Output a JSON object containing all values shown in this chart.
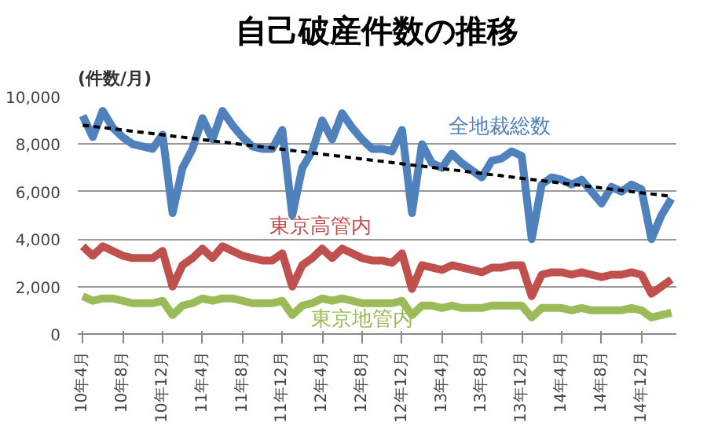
{
  "chart_data": {
    "type": "line",
    "title": "自己破産件数の推移",
    "ylabel": "(件数/月)",
    "categories": [
      "10年4月",
      null,
      null,
      null,
      "10年8月",
      null,
      null,
      null,
      "10年12月",
      null,
      null,
      null,
      "11年4月",
      null,
      null,
      null,
      "11年8月",
      null,
      null,
      null,
      "11年12月",
      null,
      null,
      null,
      "12年4月",
      null,
      null,
      null,
      "12年8月",
      null,
      null,
      null,
      "12年12月",
      null,
      null,
      null,
      "13年4月",
      null,
      null,
      null,
      "13年8月",
      null,
      null,
      null,
      "13年12月",
      null,
      null,
      null,
      "14年4月",
      null,
      null,
      null,
      "14年8月",
      null,
      null,
      null,
      "14年12月",
      null,
      null,
      null
    ],
    "series": [
      {
        "name": "全地裁総数",
        "color": "#4f81bd",
        "values": [
          9200,
          8300,
          9400,
          8700,
          8300,
          8000,
          7900,
          7800,
          8400,
          5100,
          7000,
          7800,
          9100,
          8200,
          9400,
          8800,
          8300,
          7900,
          7800,
          7800,
          8600,
          5000,
          7000,
          7700,
          9000,
          8200,
          9300,
          8700,
          8200,
          7800,
          7800,
          7700,
          8600,
          5100,
          8000,
          7200,
          7000,
          7600,
          7200,
          6900,
          6600,
          7300,
          7400,
          7700,
          7500,
          4000,
          6300,
          6600,
          6500,
          6300,
          6500,
          6000,
          5500,
          6200,
          6000,
          6300,
          6100,
          4000,
          5000,
          5700
        ]
      },
      {
        "name": "東京高管内",
        "color": "#c0504d",
        "values": [
          3700,
          3300,
          3700,
          3500,
          3300,
          3200,
          3200,
          3200,
          3500,
          2000,
          2900,
          3200,
          3600,
          3200,
          3700,
          3500,
          3300,
          3200,
          3100,
          3100,
          3400,
          2000,
          2900,
          3200,
          3600,
          3200,
          3600,
          3400,
          3200,
          3100,
          3100,
          3000,
          3400,
          1900,
          2900,
          2800,
          2700,
          2900,
          2800,
          2700,
          2600,
          2800,
          2800,
          2900,
          2900,
          1600,
          2500,
          2600,
          2600,
          2500,
          2600,
          2500,
          2400,
          2500,
          2500,
          2600,
          2500,
          1700,
          2000,
          2300
        ]
      },
      {
        "name": "東京地管内",
        "color": "#9bbb59",
        "values": [
          1600,
          1400,
          1500,
          1500,
          1400,
          1300,
          1300,
          1300,
          1400,
          800,
          1200,
          1300,
          1500,
          1400,
          1500,
          1500,
          1400,
          1300,
          1300,
          1300,
          1400,
          800,
          1200,
          1300,
          1500,
          1400,
          1500,
          1400,
          1300,
          1300,
          1300,
          1300,
          1400,
          800,
          1200,
          1200,
          1100,
          1200,
          1100,
          1100,
          1100,
          1200,
          1200,
          1200,
          1200,
          700,
          1100,
          1100,
          1100,
          1000,
          1100,
          1000,
          1000,
          1000,
          1000,
          1100,
          1000,
          700,
          800,
          900
        ]
      },
      {
        "color": "#000000",
        "line_style": "dashed",
        "values": [
          8800,
          null,
          null,
          null,
          null,
          null,
          null,
          null,
          null,
          null,
          null,
          null,
          null,
          null,
          null,
          null,
          null,
          null,
          null,
          null,
          null,
          null,
          null,
          null,
          null,
          null,
          null,
          null,
          null,
          null,
          null,
          null,
          null,
          null,
          null,
          null,
          null,
          null,
          null,
          null,
          null,
          null,
          null,
          null,
          null,
          null,
          null,
          null,
          null,
          null,
          null,
          null,
          null,
          null,
          null,
          null,
          null,
          null,
          null,
          5800
        ]
      }
    ],
    "ylim": [
      0,
      10000
    ],
    "yticks": [
      {
        "value": 0,
        "label": "0"
      },
      {
        "value": 2000,
        "label": "2,000"
      },
      {
        "value": 4000,
        "label": "4,000"
      },
      {
        "value": 6000,
        "label": "6,000"
      },
      {
        "value": 8000,
        "label": "8,000"
      },
      {
        "value": 10000,
        "label": "10,000"
      }
    ],
    "grid": "y"
  }
}
